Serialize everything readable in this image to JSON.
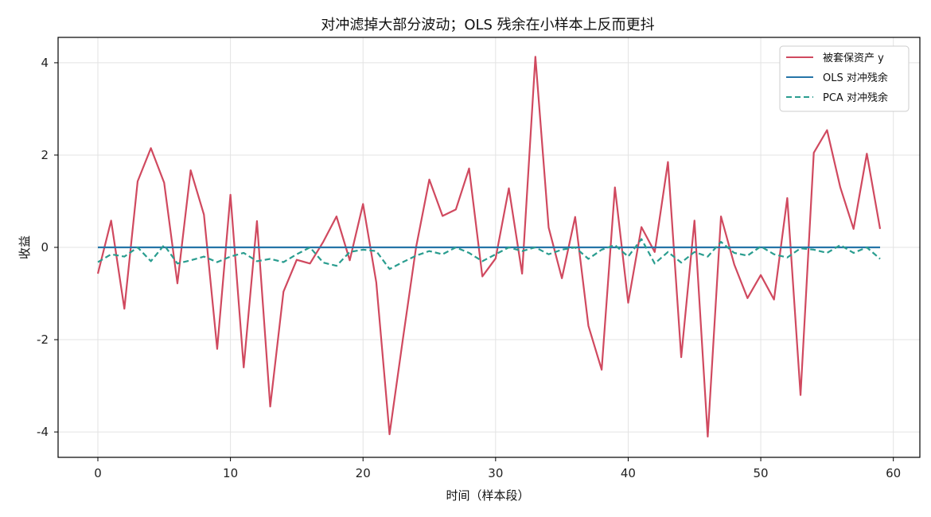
{
  "chart_data": {
    "type": "line",
    "title": "对冲滤掉大部分波动；OLS 残余在小样本上反而更抖",
    "xlabel": "时间（样本段）",
    "ylabel": "收益",
    "xlim": [
      -3,
      62
    ],
    "ylim": [
      -4.55,
      4.55
    ],
    "xticks": [
      0,
      10,
      20,
      30,
      40,
      50,
      60
    ],
    "yticks": [
      -4,
      -2,
      0,
      2,
      4
    ],
    "grid": true,
    "legend_position": "top-right",
    "series": [
      {
        "name": "被套保资产 y",
        "color": "#d0495f",
        "style": "solid",
        "values": [
          -0.57,
          0.58,
          -1.33,
          1.43,
          2.15,
          1.4,
          -0.78,
          1.67,
          0.71,
          -2.2,
          1.14,
          -2.6,
          0.57,
          -3.45,
          -0.96,
          -0.27,
          -0.35,
          0.12,
          0.67,
          -0.28,
          0.94,
          -0.76,
          -4.05,
          -2.0,
          0.0,
          1.47,
          0.68,
          0.82,
          1.71,
          -0.63,
          -0.24,
          1.28,
          -0.57,
          4.13,
          0.43,
          -0.67,
          0.66,
          -1.7,
          -2.65,
          1.3,
          -1.2,
          0.44,
          -0.1,
          1.85,
          -2.38,
          0.58,
          -4.1,
          0.67,
          -0.37,
          -1.1,
          -0.6,
          -1.13,
          1.07,
          -3.2,
          2.05,
          2.54,
          1.3,
          0.4,
          2.03,
          0.4
        ]
      },
      {
        "name": "OLS 对冲残余",
        "color": "#2575a8",
        "style": "solid",
        "values": [
          0.0,
          0.0,
          0.0,
          0.0,
          0.0,
          0.0,
          0.0,
          0.0,
          0.0,
          0.0,
          0.0,
          0.0,
          0.0,
          0.0,
          0.0,
          0.0,
          0.0,
          0.0,
          0.0,
          0.0,
          0.0,
          0.0,
          0.0,
          0.0,
          0.0,
          0.0,
          0.0,
          0.0,
          0.0,
          0.0,
          0.0,
          0.0,
          0.0,
          0.0,
          0.0,
          0.0,
          0.0,
          0.0,
          0.0,
          0.0,
          0.0,
          0.0,
          0.0,
          0.0,
          0.0,
          0.0,
          0.0,
          0.0,
          0.0,
          0.0,
          0.0,
          0.0,
          0.0,
          0.0,
          0.0,
          0.0,
          0.0,
          0.0,
          0.0,
          0.0
        ]
      },
      {
        "name": "PCA 对冲残余",
        "color": "#2a9d8f",
        "style": "dashed",
        "values": [
          -0.32,
          -0.15,
          -0.2,
          0.0,
          -0.3,
          0.05,
          -0.35,
          -0.28,
          -0.2,
          -0.32,
          -0.2,
          -0.12,
          -0.3,
          -0.25,
          -0.32,
          -0.15,
          0.0,
          -0.33,
          -0.4,
          -0.1,
          -0.05,
          -0.08,
          -0.47,
          -0.32,
          -0.18,
          -0.08,
          -0.15,
          0.0,
          -0.12,
          -0.3,
          -0.15,
          0.0,
          -0.08,
          0.0,
          -0.15,
          -0.05,
          0.0,
          -0.25,
          -0.05,
          0.05,
          -0.2,
          0.18,
          -0.35,
          -0.1,
          -0.33,
          -0.1,
          -0.2,
          0.12,
          -0.12,
          -0.18,
          0.02,
          -0.15,
          -0.22,
          -0.02,
          -0.05,
          -0.12,
          0.05,
          -0.12,
          0.0,
          -0.25
        ]
      }
    ]
  }
}
